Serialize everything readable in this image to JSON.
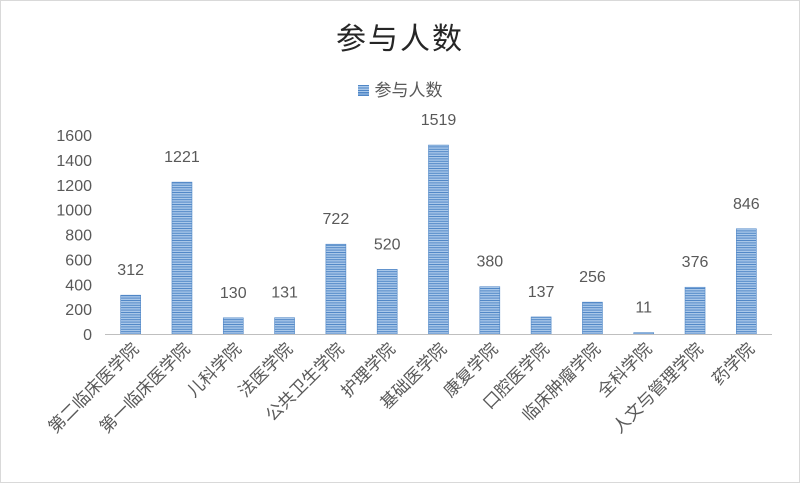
{
  "chart_data": {
    "type": "bar",
    "title": "参与人数",
    "legend": {
      "position": "top",
      "entries": [
        "参与人数"
      ]
    },
    "categories": [
      "第二临床医学院",
      "第一临床医学院",
      "儿科学院",
      "法医学院",
      "公共卫生学院",
      "护理学院",
      "基础医学院",
      "康复学院",
      "口腔医学院",
      "临床肿瘤学院",
      "全科学院",
      "人文与管理学院",
      "药学院"
    ],
    "series": [
      {
        "name": "参与人数",
        "values": [
          312,
          1221,
          130,
          131,
          722,
          520,
          1519,
          380,
          137,
          256,
          11,
          376,
          846
        ]
      }
    ],
    "yticks": [
      "0",
      "200",
      "400",
      "600",
      "800",
      "1000",
      "1200",
      "1400",
      "1600"
    ],
    "ylim": [
      0,
      1600
    ],
    "grid": false,
    "colors": {
      "bar_dark": "#4f86c6",
      "bar_light": "#a9c8ea"
    }
  }
}
